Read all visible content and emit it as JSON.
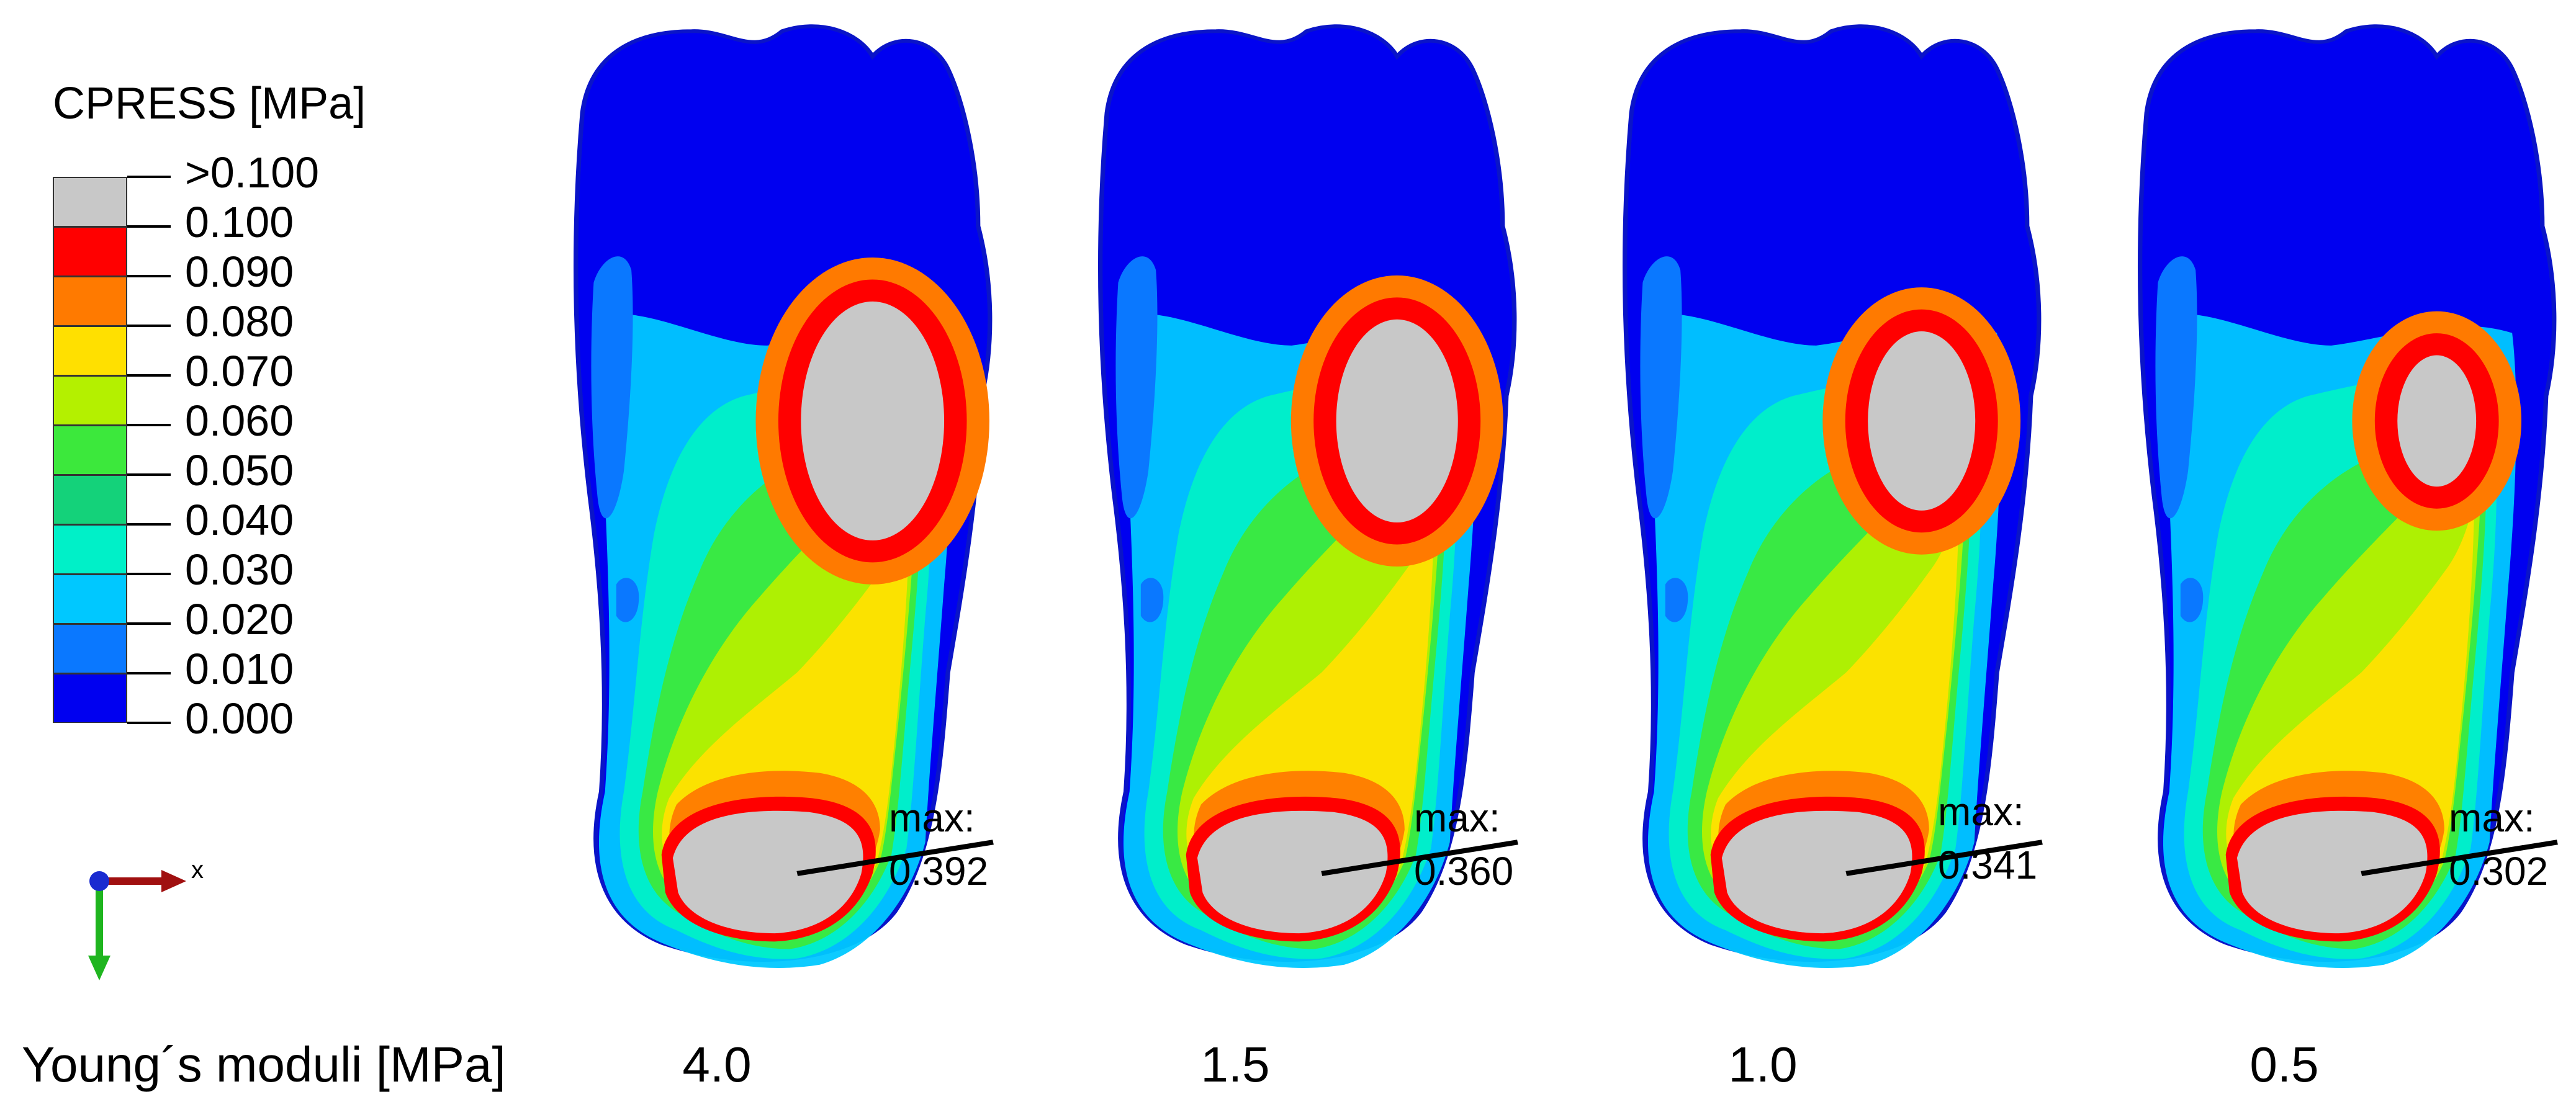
{
  "legend": {
    "title": "CPRESS [MPa]",
    "labels": [
      ">0.100",
      "0.100",
      "0.090",
      "0.080",
      "0.070",
      "0.060",
      "0.050",
      "0.040",
      "0.030",
      "0.020",
      "0.010",
      "0.000"
    ],
    "colors": [
      "#c8c8c8",
      "#ff0000",
      "#ff7a00",
      "#ffe000",
      "#b4f000",
      "#3ce83c",
      "#14d27a",
      "#00f0c8",
      "#00c8ff",
      "#0a78ff",
      "#0000f0"
    ]
  },
  "triad": {
    "x_label": "x"
  },
  "panels": [
    {
      "max_label": "max:",
      "max_value": "0.392",
      "modulus": "4.0",
      "hotspot_scale": 1.0
    },
    {
      "max_label": "max:",
      "max_value": "0.360",
      "modulus": "1.5",
      "hotspot_scale": 0.85
    },
    {
      "max_label": "max:",
      "max_value": "0.341",
      "modulus": "1.0",
      "hotspot_scale": 0.75
    },
    {
      "max_label": "max:",
      "max_value": "0.302",
      "modulus": "0.5",
      "hotspot_scale": 0.55
    }
  ],
  "bottom": {
    "row_label": "Young´s moduli [MPa]"
  }
}
